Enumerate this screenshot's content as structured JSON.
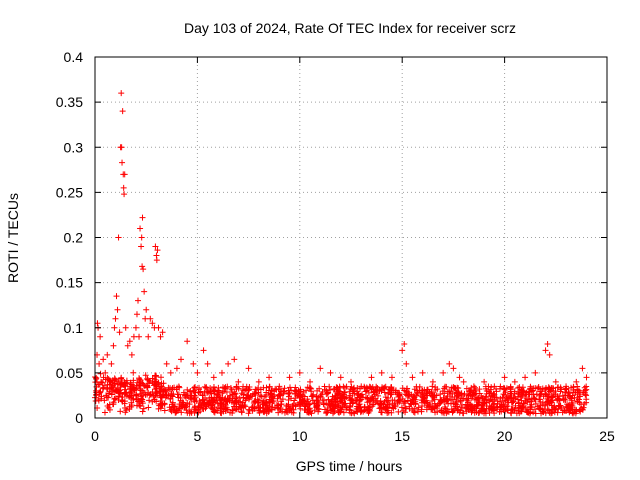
{
  "chart_data": {
    "type": "scatter",
    "title": "Day 103 of 2024, Rate Of TEC Index for receiver scrz",
    "xlabel": "GPS time / hours",
    "ylabel": "ROTI / TECUs",
    "xlim": [
      0,
      25
    ],
    "ylim": [
      0,
      0.4
    ],
    "xticks": [
      0,
      5,
      10,
      15,
      20,
      25
    ],
    "yticks": [
      0,
      0.05,
      0.1,
      0.15,
      0.2,
      0.25,
      0.3,
      0.35,
      0.4
    ],
    "xtick_labels": [
      "0",
      "5",
      "10",
      "15",
      "20",
      "25"
    ],
    "ytick_labels": [
      "0",
      "0.05",
      "0.1",
      "0.15",
      "0.2",
      "0.25",
      "0.3",
      "0.35",
      "0.4"
    ],
    "grid": true,
    "marker": "+",
    "series_color": "#ff0000",
    "series": [
      {
        "name": "ROTI",
        "points": [
          [
            0.05,
            0.03
          ],
          [
            0.1,
            0.07
          ],
          [
            0.12,
            0.105
          ],
          [
            0.15,
            0.1
          ],
          [
            0.2,
            0.06
          ],
          [
            0.25,
            0.09
          ],
          [
            0.3,
            0.04
          ],
          [
            0.4,
            0.065
          ],
          [
            0.5,
            0.05
          ],
          [
            0.6,
            0.07
          ],
          [
            0.7,
            0.04
          ],
          [
            0.8,
            0.06
          ],
          [
            0.9,
            0.08
          ],
          [
            0.95,
            0.1
          ],
          [
            1.0,
            0.11
          ],
          [
            1.05,
            0.135
          ],
          [
            1.1,
            0.12
          ],
          [
            1.15,
            0.2
          ],
          [
            1.2,
            0.095
          ],
          [
            1.25,
            0.3
          ],
          [
            1.28,
            0.36
          ],
          [
            1.3,
            0.3
          ],
          [
            1.32,
            0.283
          ],
          [
            1.35,
            0.34
          ],
          [
            1.38,
            0.27
          ],
          [
            1.4,
            0.255
          ],
          [
            1.42,
            0.248
          ],
          [
            1.45,
            0.27
          ],
          [
            1.5,
            0.1
          ],
          [
            1.6,
            0.08
          ],
          [
            1.7,
            0.085
          ],
          [
            1.8,
            0.07
          ],
          [
            1.9,
            0.09
          ],
          [
            2.0,
            0.1
          ],
          [
            2.05,
            0.115
          ],
          [
            2.1,
            0.13
          ],
          [
            2.15,
            0.09
          ],
          [
            2.2,
            0.21
          ],
          [
            2.25,
            0.19
          ],
          [
            2.28,
            0.2
          ],
          [
            2.3,
            0.168
          ],
          [
            2.32,
            0.222
          ],
          [
            2.35,
            0.165
          ],
          [
            2.4,
            0.14
          ],
          [
            2.45,
            0.11
          ],
          [
            2.5,
            0.12
          ],
          [
            2.6,
            0.09
          ],
          [
            2.7,
            0.11
          ],
          [
            2.8,
            0.105
          ],
          [
            2.9,
            0.1
          ],
          [
            2.95,
            0.19
          ],
          [
            3.0,
            0.18
          ],
          [
            3.02,
            0.175
          ],
          [
            3.05,
            0.186
          ],
          [
            3.1,
            0.1
          ],
          [
            3.2,
            0.09
          ],
          [
            3.3,
            0.095
          ],
          [
            3.5,
            0.06
          ],
          [
            3.7,
            0.05
          ],
          [
            4.0,
            0.055
          ],
          [
            4.2,
            0.065
          ],
          [
            4.5,
            0.085
          ],
          [
            4.8,
            0.06
          ],
          [
            5.0,
            0.05
          ],
          [
            5.3,
            0.075
          ],
          [
            5.5,
            0.06
          ],
          [
            5.8,
            0.045
          ],
          [
            6.2,
            0.05
          ],
          [
            6.5,
            0.06
          ],
          [
            6.8,
            0.065
          ],
          [
            7.0,
            0.04
          ],
          [
            7.5,
            0.055
          ],
          [
            8.0,
            0.04
          ],
          [
            8.5,
            0.045
          ],
          [
            9.0,
            0.035
          ],
          [
            9.5,
            0.045
          ],
          [
            10.0,
            0.05
          ],
          [
            10.5,
            0.04
          ],
          [
            11.0,
            0.055
          ],
          [
            11.5,
            0.05
          ],
          [
            12.0,
            0.045
          ],
          [
            12.5,
            0.04
          ],
          [
            13.0,
            0.035
          ],
          [
            13.5,
            0.045
          ],
          [
            14.0,
            0.05
          ],
          [
            14.5,
            0.045
          ],
          [
            15.0,
            0.075
          ],
          [
            15.1,
            0.082
          ],
          [
            15.2,
            0.06
          ],
          [
            15.5,
            0.045
          ],
          [
            16.0,
            0.05
          ],
          [
            16.5,
            0.04
          ],
          [
            17.0,
            0.05
          ],
          [
            17.3,
            0.06
          ],
          [
            17.5,
            0.055
          ],
          [
            17.8,
            0.045
          ],
          [
            18.0,
            0.04
          ],
          [
            18.5,
            0.035
          ],
          [
            19.0,
            0.04
          ],
          [
            19.5,
            0.035
          ],
          [
            20.0,
            0.045
          ],
          [
            20.5,
            0.04
          ],
          [
            21.0,
            0.045
          ],
          [
            21.5,
            0.05
          ],
          [
            22.0,
            0.075
          ],
          [
            22.1,
            0.082
          ],
          [
            22.2,
            0.07
          ],
          [
            22.5,
            0.04
          ],
          [
            23.0,
            0.035
          ],
          [
            23.5,
            0.04
          ],
          [
            23.8,
            0.055
          ],
          [
            24.0,
            0.045
          ]
        ]
      }
    ],
    "noise_band": {
      "description": "dense cluster of samples along the baseline",
      "x_range": [
        0,
        24
      ],
      "y_range": [
        0.005,
        0.035
      ],
      "count": 1800
    }
  }
}
